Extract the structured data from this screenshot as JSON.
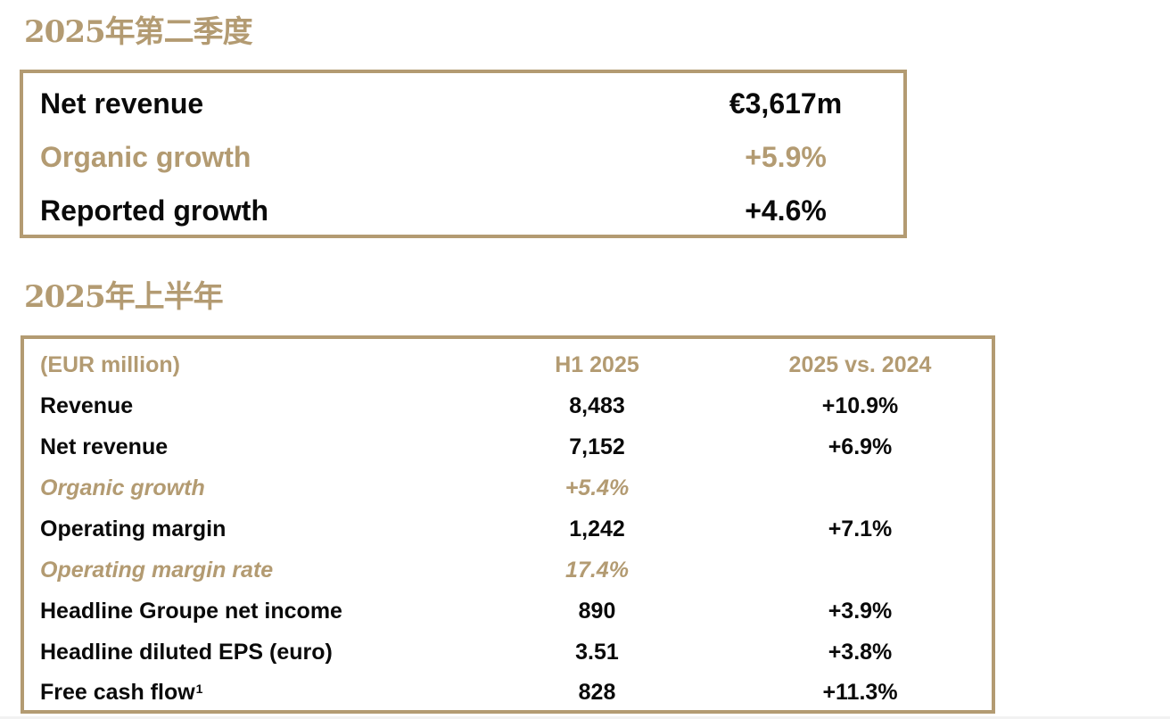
{
  "q2": {
    "title": "2025年第二季度",
    "rows": [
      {
        "label": "Net revenue",
        "value": "€3,617m",
        "highlight": false
      },
      {
        "label": "Organic growth",
        "value": "+5.9%",
        "highlight": true
      },
      {
        "label": "Reported growth",
        "value": "+4.6%",
        "highlight": false
      }
    ]
  },
  "h1": {
    "title": "2025年上半年",
    "header": {
      "label": "(EUR million)",
      "col1": "H1 2025",
      "col2": "2025 vs. 2024"
    },
    "rows": [
      {
        "label": "Revenue",
        "value": "8,483",
        "change": "+10.9%"
      },
      {
        "label": "Net revenue",
        "value": "7,152",
        "change": "+6.9%"
      },
      {
        "label": "Organic growth",
        "value": "+5.4%",
        "change": ""
      },
      {
        "label": "Operating margin",
        "value": "1,242",
        "change": "+7.1%"
      },
      {
        "label": "Operating margin rate",
        "value": "17.4%",
        "change": ""
      },
      {
        "label": "Headline Groupe net income",
        "value": "890",
        "change": "+3.9%"
      },
      {
        "label": "Headline diluted EPS (euro)",
        "value": "3.51",
        "change": "+3.8%"
      },
      {
        "label": "Free cash flow",
        "footnote": "1",
        "value": "828",
        "change": "+11.3%"
      }
    ]
  },
  "colors": {
    "accent_gold": "#b39b72",
    "text": "#0a0a0a"
  }
}
